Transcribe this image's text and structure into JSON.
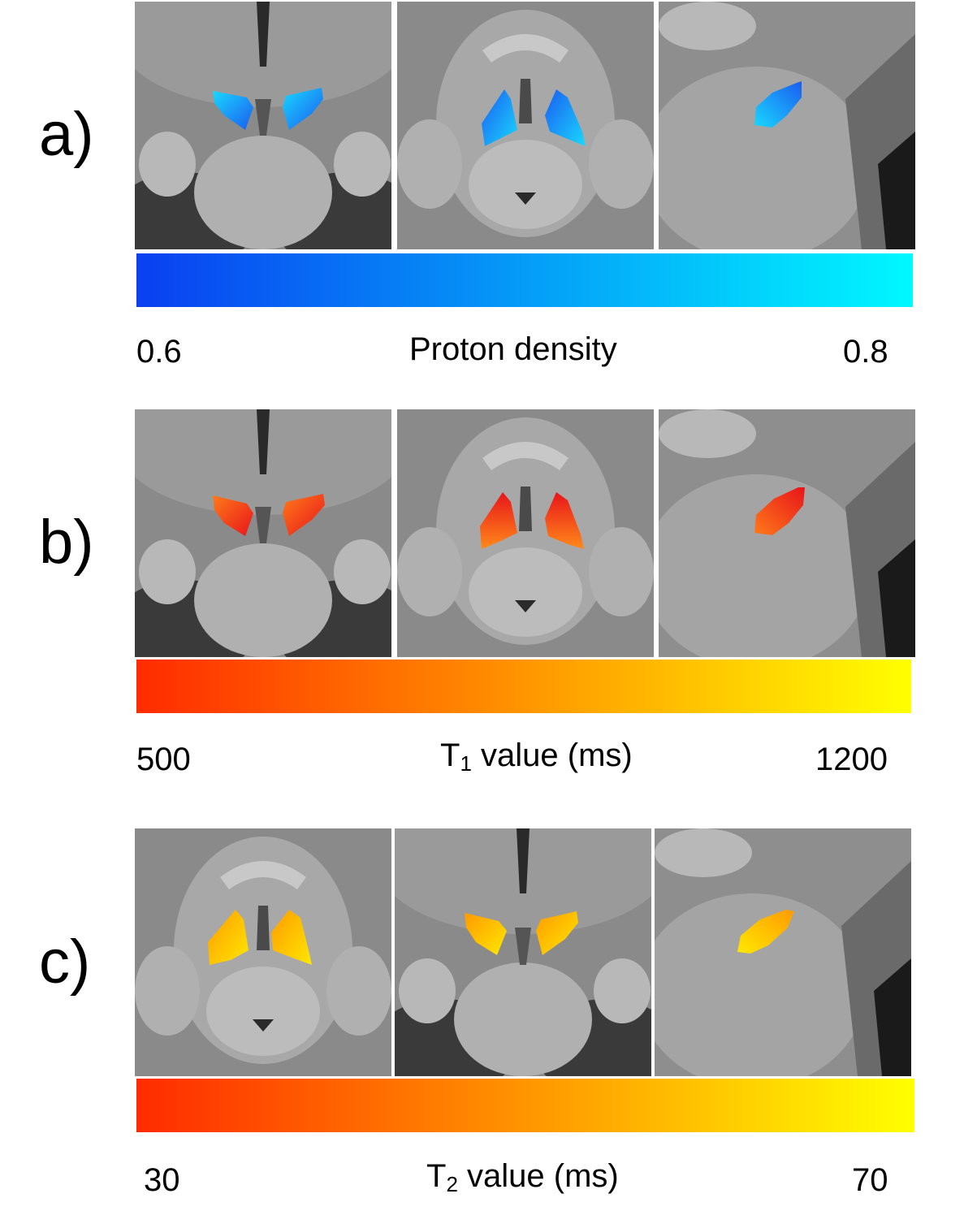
{
  "panels": [
    {
      "label": "a)",
      "views": [
        "coronal",
        "axial",
        "sagittal"
      ],
      "overlay_colors": [
        "#1a5cf0",
        "#19d8ff"
      ],
      "colorbar": {
        "from": "#0a3ff0",
        "to": "#00f8ff",
        "min": "0.6",
        "max": "0.8",
        "caption": {
          "pre": "Proton density",
          "sub": "",
          "post": ""
        }
      }
    },
    {
      "label": "b)",
      "views": [
        "coronal",
        "axial",
        "sagittal"
      ],
      "overlay_colors": [
        "#e8141a",
        "#ff7a1a"
      ],
      "colorbar": {
        "from": "#ff2b00",
        "to": "#ffff00",
        "min": "500",
        "max": "1200",
        "caption": {
          "pre": "T",
          "sub": "1",
          "post": " value (ms)"
        }
      }
    },
    {
      "label": "c)",
      "views": [
        "axial",
        "coronal",
        "sagittal"
      ],
      "overlay_colors": [
        "#ff9a00",
        "#ffe800"
      ],
      "colorbar": {
        "from": "#ff2b00",
        "to": "#ffff00",
        "min": "30",
        "max": "70",
        "caption": {
          "pre": "T",
          "sub": "2",
          "post": " value (ms)"
        }
      }
    }
  ]
}
